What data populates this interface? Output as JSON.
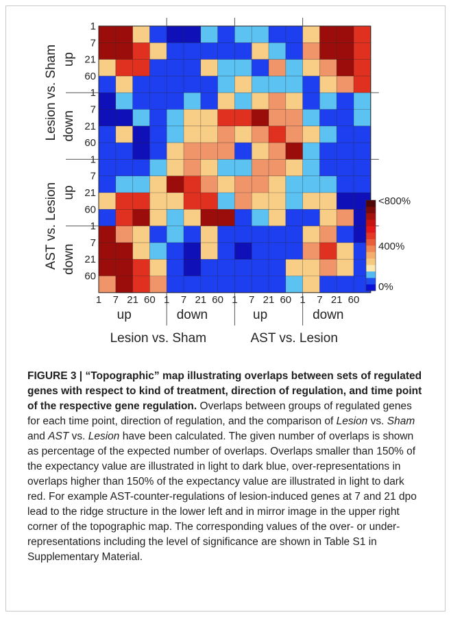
{
  "figure": {
    "row_ticks": [
      "1",
      "7",
      "21",
      "60",
      "1",
      "7",
      "21",
      "60",
      "1",
      "7",
      "21",
      "60",
      "1",
      "7",
      "21",
      "60"
    ],
    "col_ticks": [
      "1",
      "7",
      "21",
      "60",
      "1",
      "7",
      "21",
      "60",
      "1",
      "7",
      "21",
      "60",
      "1",
      "7",
      "21",
      "60"
    ],
    "direction_labels": [
      "up",
      "down",
      "up",
      "down"
    ],
    "comparison_labels": [
      "Lesion vs. Sham",
      "AST vs. Lesion"
    ],
    "colorbar": {
      "ticks": [
        "<800%",
        "400%",
        "0%"
      ],
      "colors": [
        "#0a10d6",
        "#1e4cf0",
        "#56b8f0",
        "#fbe7b0",
        "#f7c97f",
        "#f4ad6c",
        "#ef8855",
        "#ea5d3a",
        "#e53925",
        "#e31818",
        "#c71410",
        "#a50f0c",
        "#7c0a08",
        "#500707"
      ]
    },
    "palette": {
      "deep_blue": "#1010b8",
      "blue": "#1d3ff0",
      "sky": "#5bc2f2",
      "sand": "#f8cd85",
      "orange": "#f0956a",
      "red": "#e0301f",
      "dark_red": "#9a0d0a"
    }
  },
  "chart_data": {
    "type": "heatmap",
    "title": "",
    "x_groups": [
      {
        "comparison": "Lesion vs. Sham",
        "direction": "up",
        "time_points": [
          "1",
          "7",
          "21",
          "60"
        ]
      },
      {
        "comparison": "Lesion vs. Sham",
        "direction": "down",
        "time_points": [
          "1",
          "7",
          "21",
          "60"
        ]
      },
      {
        "comparison": "AST vs. Lesion",
        "direction": "up",
        "time_points": [
          "1",
          "7",
          "21",
          "60"
        ]
      },
      {
        "comparison": "AST vs. Lesion",
        "direction": "down",
        "time_points": [
          "1",
          "7",
          "21",
          "60"
        ]
      }
    ],
    "y_groups": [
      {
        "comparison": "Lesion vs. Sham",
        "direction": "up",
        "time_points": [
          "1",
          "7",
          "21",
          "60"
        ]
      },
      {
        "comparison": "Lesion vs. Sham",
        "direction": "down",
        "time_points": [
          "1",
          "7",
          "21",
          "60"
        ]
      },
      {
        "comparison": "AST vs. Lesion",
        "direction": "up",
        "time_points": [
          "1",
          "7",
          "21",
          "60"
        ]
      },
      {
        "comparison": "AST vs. Lesion",
        "direction": "down",
        "time_points": [
          "1",
          "7",
          "21",
          "60"
        ]
      }
    ],
    "color_scale": {
      "min_label": "0%",
      "mid_label": "400%",
      "max_label": "<800%"
    },
    "values_percent": [
      [
        800,
        750,
        150,
        60,
        0,
        20,
        120,
        90,
        130,
        140,
        100,
        60,
        180,
        650,
        700,
        600
      ],
      [
        650,
        650,
        500,
        150,
        60,
        40,
        100,
        80,
        60,
        150,
        120,
        100,
        250,
        650,
        700,
        600
      ],
      [
        180,
        500,
        500,
        100,
        80,
        100,
        150,
        140,
        120,
        90,
        300,
        140,
        150,
        300,
        650,
        500
      ],
      [
        100,
        150,
        100,
        100,
        60,
        60,
        50,
        120,
        160,
        110,
        110,
        140,
        100,
        150,
        400,
        500
      ],
      [
        10,
        120,
        100,
        60,
        100,
        120,
        100,
        150,
        120,
        200,
        300,
        200,
        100,
        120,
        100,
        120
      ],
      [
        0,
        20,
        120,
        100,
        130,
        200,
        180,
        500,
        500,
        650,
        350,
        250,
        140,
        100,
        100,
        110
      ],
      [
        60,
        150,
        0,
        100,
        120,
        150,
        180,
        400,
        200,
        300,
        600,
        400,
        200,
        120,
        100,
        80
      ],
      [
        50,
        100,
        0,
        100,
        150,
        400,
        400,
        400,
        100,
        200,
        300,
        750,
        120,
        80,
        100,
        60
      ],
      [
        80,
        100,
        100,
        120,
        200,
        300,
        160,
        140,
        110,
        250,
        350,
        150,
        120,
        100,
        80,
        60
      ],
      [
        100,
        140,
        130,
        150,
        700,
        600,
        300,
        200,
        350,
        400,
        200,
        110,
        130,
        120,
        60,
        50
      ],
      [
        150,
        500,
        500,
        150,
        200,
        600,
        600,
        120,
        300,
        200,
        200,
        120,
        150,
        200,
        20,
        30
      ],
      [
        100,
        600,
        700,
        150,
        110,
        150,
        650,
        700,
        100,
        120,
        200,
        100,
        80,
        200,
        300,
        30
      ],
      [
        700,
        300,
        150,
        100,
        110,
        100,
        150,
        100,
        60,
        60,
        80,
        60,
        150,
        250,
        100,
        20
      ],
      [
        850,
        700,
        150,
        120,
        100,
        30,
        150,
        80,
        30,
        60,
        80,
        60,
        250,
        450,
        200,
        100
      ],
      [
        800,
        750,
        600,
        150,
        60,
        30,
        80,
        100,
        100,
        50,
        60,
        150,
        200,
        300,
        150,
        60
      ],
      [
        300,
        700,
        600,
        300,
        100,
        80,
        60,
        100,
        100,
        100,
        60,
        120,
        200,
        100,
        80,
        60
      ]
    ]
  },
  "caption": {
    "figure_label": "FIGURE 3 | ",
    "title": "“Topographic” map illustrating overlaps between sets of regulated genes with respect to kind of treatment, direction of regulation, and time point of the respective gene regulation.",
    "text_1": " Overlaps between groups of regulated genes for each time point, direction of regulation, and the comparison of ",
    "lesion_1": "Lesion",
    "vs_1": " vs. ",
    "sham": "Sham",
    "and": " and ",
    "ast": "AST",
    "vs_2": " vs. ",
    "lesion_2": "Lesion",
    "text_2": " have been calculated. The given number of overlaps is shown as percentage of the expected number of overlaps. Overlaps smaller than 150% of the expectancy value are illustrated in light to dark blue, over-representations in overlaps higher than 150% of the expectancy value are illustrated in light to dark red. For example AST-counter-regulations of lesion-induced genes at 7 and 21 dpo lead to the ridge structure in the lower left and in mirror image in the upper right corner of the topographic map. The corresponding values of the over- or under-representations including the level of significance are shown in Table S1 in Supplementary Material."
  }
}
